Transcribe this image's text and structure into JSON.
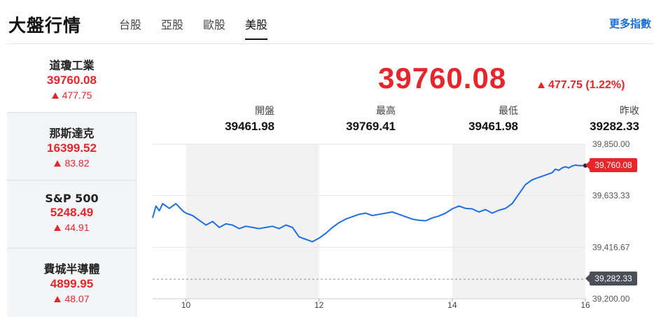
{
  "header": {
    "title": "大盤行情",
    "tabs": [
      {
        "label": "台股",
        "active": false
      },
      {
        "label": "亞股",
        "active": false
      },
      {
        "label": "歐股",
        "active": false
      },
      {
        "label": "美股",
        "active": true
      }
    ],
    "more_link": "更多指數"
  },
  "sidebar": {
    "items": [
      {
        "name": "道瓊工業",
        "price": "39760.08",
        "change": "477.75",
        "active": true
      },
      {
        "name": "那斯達克",
        "price": "16399.52",
        "change": "83.82",
        "active": false
      },
      {
        "name": "S&P 500",
        "price": "5248.49",
        "change": "44.91",
        "active": false
      },
      {
        "name": "費城半導體",
        "price": "4899.95",
        "change": "48.07",
        "active": false
      }
    ]
  },
  "quote": {
    "price": "39760.08",
    "change": "477.75 (1.22%)",
    "stats": [
      {
        "label": "開盤",
        "value": "39461.98"
      },
      {
        "label": "最高",
        "value": "39769.41"
      },
      {
        "label": "最低",
        "value": "39461.98"
      },
      {
        "label": "昨收",
        "value": "39282.33"
      }
    ]
  },
  "colors": {
    "up": "#e5262c",
    "line": "#1f6fe0",
    "link": "#1a6fd6",
    "prev_close_tag": "#4b4f57"
  },
  "icons": {
    "up": "triangle-up-icon"
  },
  "chart_data": {
    "type": "line",
    "x_tick_labels": [
      "10",
      "12",
      "14",
      "16"
    ],
    "x_range": [
      9.5,
      16
    ],
    "ylim": [
      39200,
      39850
    ],
    "y_tick_labels": [
      "39,850.00",
      "39,633.33",
      "39,416.67",
      "39,200.00"
    ],
    "y_ticks": [
      39850,
      39633.33,
      39416.67,
      39200
    ],
    "last_value_label": "39,760.08",
    "last_value": 39760.08,
    "prev_close_label": "39,282.33",
    "prev_close": 39282.33,
    "shaded_hour_bands": [
      [
        10,
        12
      ],
      [
        14,
        16
      ]
    ],
    "series": [
      {
        "x": [
          9.5,
          9.55,
          9.6,
          9.65,
          9.75,
          9.85,
          9.95,
          10.0,
          10.1,
          10.2,
          10.3,
          10.4,
          10.5,
          10.6,
          10.7,
          10.8,
          10.9,
          11.0,
          11.1,
          11.2,
          11.3,
          11.4,
          11.5,
          11.6,
          11.7,
          11.8,
          11.9,
          12.0,
          12.1,
          12.2,
          12.3,
          12.4,
          12.5,
          12.6,
          12.7,
          12.8,
          12.9,
          13.0,
          13.1,
          13.2,
          13.3,
          13.4,
          13.5,
          13.6,
          13.7,
          13.8,
          13.9,
          14.0,
          14.1,
          14.2,
          14.3,
          14.4,
          14.5,
          14.6,
          14.7,
          14.8,
          14.9,
          15.0,
          15.1,
          15.2,
          15.3,
          15.4,
          15.5,
          15.55,
          15.6,
          15.65,
          15.7,
          15.75,
          15.8,
          15.85,
          15.9,
          15.95,
          16.0
        ],
        "y": [
          39540,
          39590,
          39570,
          39600,
          39580,
          39600,
          39570,
          39560,
          39550,
          39530,
          39510,
          39525,
          39500,
          39515,
          39510,
          39495,
          39505,
          39500,
          39495,
          39500,
          39505,
          39495,
          39510,
          39500,
          39460,
          39450,
          39440,
          39455,
          39475,
          39500,
          39520,
          39535,
          39545,
          39555,
          39560,
          39550,
          39555,
          39560,
          39565,
          39555,
          39545,
          39535,
          39530,
          39528,
          39540,
          39548,
          39560,
          39578,
          39590,
          39580,
          39578,
          39565,
          39575,
          39560,
          39572,
          39580,
          39600,
          39640,
          39680,
          39700,
          39710,
          39720,
          39730,
          39745,
          39740,
          39750,
          39755,
          39750,
          39758,
          39762,
          39760,
          39760,
          39760
        ]
      }
    ]
  }
}
